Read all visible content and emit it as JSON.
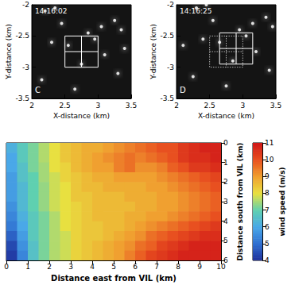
{
  "chart_data": [
    {
      "type": "scatter",
      "timestamp": "14:16:02",
      "panel": "C",
      "xlabel": "X-distance (km)",
      "ylabel": "Y-distance (km)",
      "xlim": [
        2,
        3.5
      ],
      "xticks": [
        2,
        2.5,
        3,
        3.5
      ],
      "ylim": [
        -3.5,
        -2
      ],
      "yticks": [
        -3.5,
        -3,
        -2.5,
        -2
      ],
      "x": [
        2.2,
        2.35,
        2.85,
        2.95,
        3.05,
        2.55,
        2.75,
        3.25,
        3.35,
        2.3,
        3.1,
        2.15,
        3.3,
        2.65,
        3.4,
        2.45
      ],
      "y": [
        -2.1,
        -2.05,
        -2.45,
        -2.55,
        -2.35,
        -2.65,
        -2.95,
        -2.25,
        -2.4,
        -2.6,
        -2.8,
        -3.2,
        -3.1,
        -3.35,
        -2.7,
        -2.3
      ],
      "color": "#ffffff",
      "boxes": [
        {
          "x": [
            2.5,
            3
          ],
          "y": [
            -3,
            -2.5
          ],
          "line_style": "solid",
          "color": "#ffffff"
        }
      ]
    },
    {
      "type": "scatter",
      "timestamp": "14:16:25",
      "panel": "D",
      "xlabel": "X-distance (km)",
      "ylabel": "Y-distance (km)",
      "xlim": [
        2,
        3.5
      ],
      "xticks": [
        2,
        2.5,
        3,
        3.5
      ],
      "ylim": [
        -3.5,
        -2
      ],
      "yticks": [
        -3.5,
        -3,
        -2.5,
        -2
      ],
      "x": [
        2.3,
        2.45,
        2.95,
        3.05,
        3.15,
        2.65,
        2.85,
        3.35,
        3.45,
        2.4,
        3.2,
        2.25,
        3.4,
        2.75,
        2.1,
        2.55
      ],
      "y": [
        -2.05,
        -2.0,
        -2.4,
        -2.5,
        -2.3,
        -2.6,
        -2.9,
        -2.2,
        -2.35,
        -2.55,
        -2.75,
        -3.15,
        -3.05,
        -3.3,
        -2.65,
        -2.25
      ],
      "color": "#ffffff",
      "boxes": [
        {
          "x": [
            2.5,
            3
          ],
          "y": [
            -3,
            -2.5
          ],
          "line_style": "dotted",
          "color": "#ffffff"
        },
        {
          "x": [
            2.65,
            3.15
          ],
          "y": [
            -2.95,
            -2.45
          ],
          "line_style": "solid",
          "color": "#ffffff"
        }
      ]
    },
    {
      "type": "heatmap",
      "xlabel": "Distance east from VIL (km)",
      "ylabel": "Distance south from VIL (km)",
      "xlim": [
        0,
        10
      ],
      "xticks": [
        0,
        1,
        2,
        3,
        4,
        5,
        6,
        7,
        8,
        9,
        10
      ],
      "ylim": [
        0,
        6
      ],
      "yticks": [
        0,
        1,
        2,
        3,
        4,
        5,
        6
      ],
      "x": [
        0.25,
        0.75,
        1.25,
        1.75,
        2.25,
        2.75,
        3.25,
        3.75,
        4.25,
        4.75,
        5.25,
        5.75,
        6.25,
        6.75,
        7.25,
        7.75,
        8.25,
        8.75,
        9.25,
        9.75
      ],
      "y": [
        0.25,
        0.75,
        1.25,
        1.75,
        2.25,
        2.75,
        3.25,
        3.75,
        4.25,
        4.75,
        5.25,
        5.75
      ],
      "values": [
        [
          6.2,
          6.8,
          7.2,
          7.6,
          8.0,
          8.4,
          8.6,
          8.8,
          8.8,
          9.0,
          9.2,
          9.4,
          9.6,
          9.8,
          10.0,
          10.0,
          10.4,
          10.6,
          10.8,
          10.8
        ],
        [
          6.0,
          6.8,
          7.2,
          7.6,
          8.0,
          8.4,
          8.6,
          8.8,
          9.0,
          9.2,
          9.4,
          9.6,
          9.4,
          9.6,
          9.8,
          10.0,
          10.4,
          10.6,
          10.6,
          10.8
        ],
        [
          6.0,
          6.6,
          7.2,
          7.5,
          8.0,
          8.2,
          8.6,
          8.8,
          9.0,
          9.0,
          9.4,
          9.6,
          9.2,
          9.2,
          9.4,
          9.8,
          10.0,
          10.4,
          10.4,
          10.6
        ],
        [
          5.8,
          6.6,
          7.0,
          7.5,
          7.8,
          8.2,
          8.4,
          8.6,
          8.8,
          8.8,
          9.0,
          9.0,
          9.0,
          9.0,
          9.2,
          9.4,
          9.6,
          9.8,
          10.0,
          10.2
        ],
        [
          5.8,
          6.4,
          7.0,
          7.4,
          7.8,
          8.0,
          8.4,
          8.6,
          8.6,
          8.8,
          8.8,
          8.8,
          8.8,
          9.0,
          9.0,
          9.2,
          9.4,
          9.6,
          9.8,
          10.0
        ],
        [
          5.8,
          6.4,
          7.0,
          7.4,
          7.8,
          8.0,
          8.4,
          8.4,
          8.6,
          8.6,
          8.6,
          8.8,
          8.8,
          8.8,
          9.0,
          9.0,
          9.2,
          9.4,
          9.6,
          9.8
        ],
        [
          5.6,
          6.4,
          7.0,
          7.4,
          7.8,
          8.0,
          8.2,
          8.4,
          8.6,
          8.6,
          8.6,
          8.6,
          8.8,
          8.8,
          9.0,
          9.0,
          9.2,
          9.4,
          9.6,
          9.8
        ],
        [
          5.4,
          6.2,
          6.8,
          7.2,
          7.6,
          8.0,
          8.2,
          8.4,
          8.6,
          8.6,
          8.6,
          8.8,
          8.8,
          9.0,
          9.0,
          9.2,
          9.4,
          9.6,
          9.8,
          10.0
        ],
        [
          5.2,
          6.0,
          6.8,
          7.2,
          7.6,
          8.0,
          8.2,
          8.4,
          8.4,
          8.6,
          8.6,
          8.8,
          9.0,
          9.2,
          9.4,
          9.6,
          9.8,
          10.0,
          10.2,
          10.4
        ],
        [
          4.8,
          5.8,
          6.8,
          7.2,
          7.6,
          7.8,
          8.2,
          8.4,
          8.4,
          8.6,
          8.8,
          9.0,
          9.2,
          9.6,
          9.8,
          10.0,
          10.2,
          10.4,
          10.6,
          10.6
        ],
        [
          4.4,
          5.6,
          6.6,
          7.2,
          7.6,
          7.8,
          8.2,
          8.4,
          8.6,
          8.8,
          9.0,
          9.2,
          9.6,
          9.8,
          10.2,
          10.4,
          10.6,
          10.8,
          10.8,
          10.8
        ],
        [
          4.2,
          5.4,
          6.6,
          7.2,
          7.6,
          7.8,
          8.2,
          8.4,
          8.6,
          8.8,
          9.0,
          9.4,
          9.8,
          10.2,
          10.4,
          10.6,
          10.8,
          10.8,
          10.8,
          10.8
        ]
      ],
      "colorbar": {
        "label": "wind speed (m/s)",
        "range": [
          4,
          11
        ],
        "ticks": [
          4,
          5,
          6,
          7,
          8,
          9,
          10,
          11
        ]
      }
    }
  ]
}
